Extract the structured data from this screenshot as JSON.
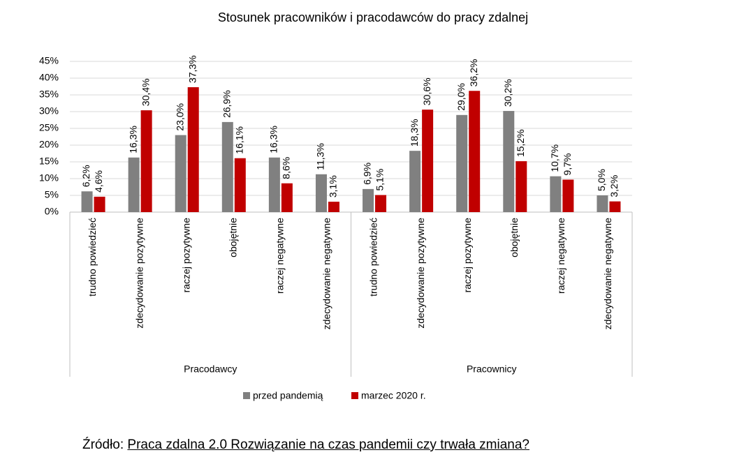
{
  "chart_data": {
    "type": "bar",
    "title": "Stosunek pracowników i pracodawców do pracy zdalnej",
    "categories": [
      "trudno powiedzieć",
      "zdecydowanie pozytywne",
      "raczej pozytywne",
      "obojętnie",
      "raczej negatywne",
      "zdecydowanie negatywne",
      "trudno powiedzieć",
      "zdecydowanie pozytywne",
      "raczej pozytywne",
      "obojętnie",
      "raczej negatywne",
      "zdecydowanie negatywne"
    ],
    "groups": [
      "Pracodawcy",
      "Pracownicy"
    ],
    "series": [
      {
        "name": "przed pandemią",
        "color": "#808080",
        "values": [
          6.2,
          16.3,
          23.0,
          26.9,
          16.3,
          11.3,
          6.9,
          18.3,
          29.0,
          30.2,
          10.7,
          5.0
        ],
        "value_labels": [
          "6,2%",
          "16,3%",
          "23,0%",
          "26,9%",
          "16,3%",
          "11,3%",
          "6,9%",
          "18,3%",
          "29,0%",
          "30,2%",
          "10,7%",
          "5,0%"
        ]
      },
      {
        "name": "marzec 2020 r.",
        "color": "#c00000",
        "values": [
          4.6,
          30.4,
          37.3,
          16.1,
          8.6,
          3.1,
          5.1,
          30.6,
          36.2,
          15.2,
          9.7,
          3.2
        ],
        "value_labels": [
          "4,6%",
          "30,4%",
          "37,3%",
          "16,1%",
          "8,6%",
          "3,1%",
          "5,1%",
          "30,6%",
          "36,2%",
          "15,2%",
          "9,7%",
          "3,2%"
        ]
      }
    ],
    "ylim": [
      0,
      45
    ],
    "yticks": [
      {
        "value": 0,
        "label": "0%"
      },
      {
        "value": 5,
        "label": "5%"
      },
      {
        "value": 10,
        "label": "10%"
      },
      {
        "value": 15,
        "label": "15%"
      },
      {
        "value": 20,
        "label": "20%"
      },
      {
        "value": 25,
        "label": "25%"
      },
      {
        "value": 30,
        "label": "30%"
      },
      {
        "value": 35,
        "label": "35%"
      },
      {
        "value": 40,
        "label": "40%"
      },
      {
        "value": 45,
        "label": "45%"
      }
    ],
    "grid": true
  },
  "source": {
    "prefix": "Źródło:",
    "link": "Praca zdalna 2.0 Rozwiązanie na czas pandemii czy trwała zmiana?"
  }
}
